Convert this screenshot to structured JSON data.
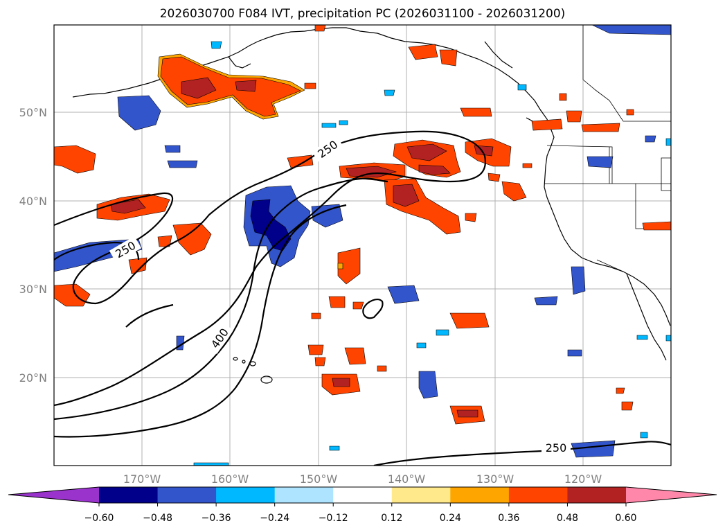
{
  "title": "2026030700 F084 IVT, precipitation PC (2026031100 - 2026031200)",
  "map": {
    "lat_labels": [
      "50°N",
      "40°N",
      "30°N",
      "20°N"
    ],
    "lon_labels": [
      "170°W",
      "160°W",
      "150°W",
      "140°W",
      "130°W",
      "120°W"
    ],
    "contour_labels": [
      "250",
      "250",
      "400",
      "250"
    ],
    "gridlines": true
  },
  "colorbar": {
    "ticks": [
      "−0.60",
      "−0.48",
      "−0.36",
      "−0.24",
      "−0.12",
      "0.12",
      "0.24",
      "0.36",
      "0.48",
      "0.60"
    ],
    "colors": [
      "#9933cc",
      "#00008b",
      "#3355cc",
      "#00b8ff",
      "#aee4ff",
      "#ffffff",
      "#ffe98a",
      "#ffa500",
      "#ff4400",
      "#b22222",
      "#ff88aa"
    ],
    "extend": "both"
  },
  "palette": {
    "neg_strong": "#00008b",
    "neg_mid": "#3355cc",
    "neg_light": "#00b8ff",
    "neg_pale": "#aee4ff",
    "pos_pale": "#ffe98a",
    "pos_light": "#ffa500",
    "pos_mid": "#ff4400",
    "pos_strong": "#b22222"
  }
}
